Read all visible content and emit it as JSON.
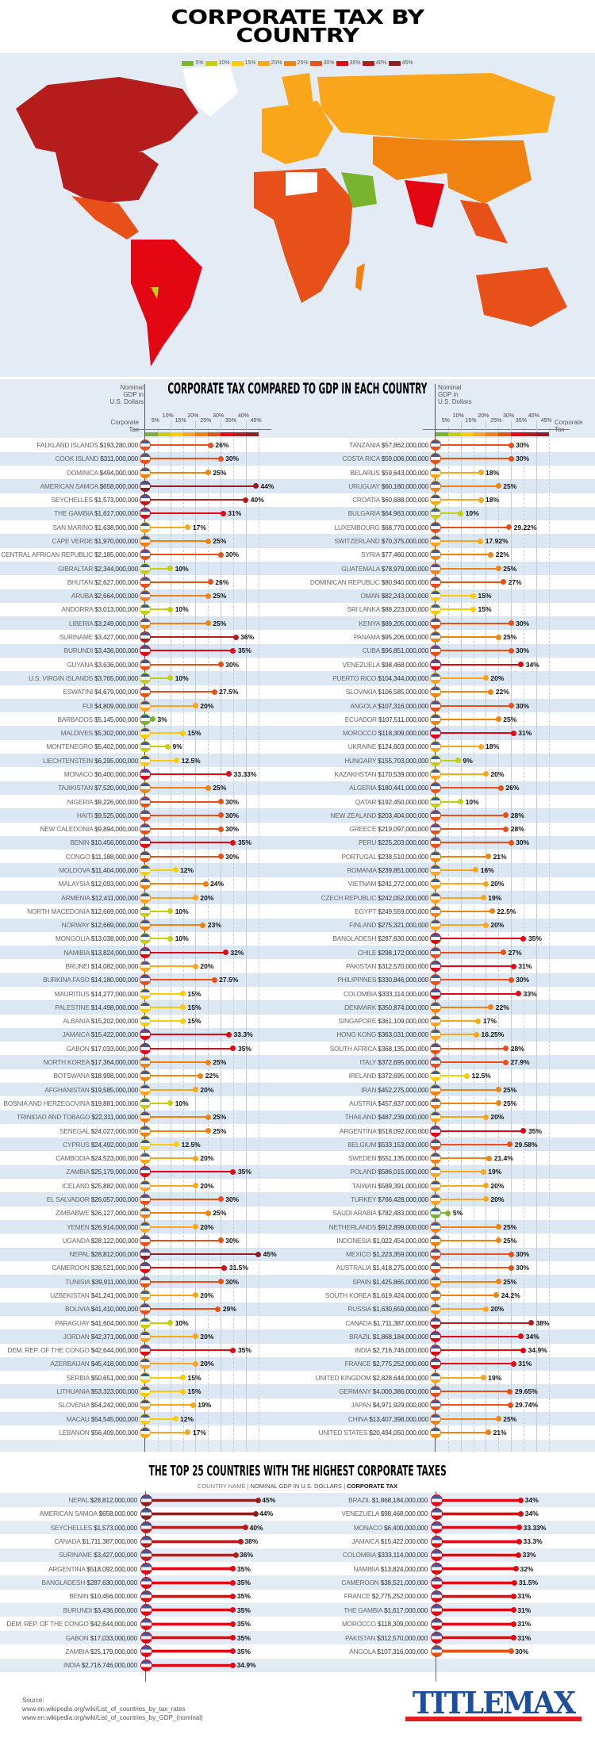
{
  "title": "CORPORATE TAX BY COUNTRY",
  "legend": [
    {
      "label": "5%",
      "color": "#7ab32e"
    },
    {
      "label": "10%",
      "color": "#c6cf0e"
    },
    {
      "label": "15%",
      "color": "#ffcb05"
    },
    {
      "label": "20%",
      "color": "#f9a61a"
    },
    {
      "label": "25%",
      "color": "#f0820f"
    },
    {
      "label": "30%",
      "color": "#e8501a"
    },
    {
      "label": "35%",
      "color": "#e30613"
    },
    {
      "label": "40%",
      "color": "#b51d1d"
    },
    {
      "label": "45%",
      "color": "#8e1f1f"
    }
  ],
  "comparison": {
    "title": "CORPORATE TAX COMPARED TO GDP IN EACH COUNTRY",
    "gdp_label": [
      "Nominal",
      "GDP in",
      "U.S. Dollars"
    ],
    "tax_label": [
      "Corporate",
      "Tax"
    ],
    "ticks": [
      "5%",
      "10%",
      "15%",
      "20%",
      "25%",
      "30%",
      "35%",
      "40%",
      "45%"
    ],
    "left": [
      {
        "country": "FALKLAND ISLANDS",
        "gdp": "$193,280,000",
        "tax": "26%"
      },
      {
        "country": "COOK ISLAND",
        "gdp": "$311,000,000",
        "tax": "30%"
      },
      {
        "country": "DOMINICA",
        "gdp": "$494,000,000",
        "tax": "25%"
      },
      {
        "country": "AMERICAN SAMOA",
        "gdp": "$658,000,000",
        "tax": "44%"
      },
      {
        "country": "SEYCHELLES",
        "gdp": "$1,573,000,000",
        "tax": "40%"
      },
      {
        "country": "THE GAMBIA",
        "gdp": "$1,617,000,000",
        "tax": "31%"
      },
      {
        "country": "SAN MARINO",
        "gdp": "$1,638,000,000",
        "tax": "17%"
      },
      {
        "country": "CAPE VERDE",
        "gdp": "$1,970,000,000",
        "tax": "25%"
      },
      {
        "country": "CENTRAL AFRICAN REPUBLIC",
        "gdp": "$2,185,000,000",
        "tax": "30%"
      },
      {
        "country": "GIBRALTAR",
        "gdp": "$2,344,000,000",
        "tax": "10%"
      },
      {
        "country": "BHUTAN",
        "gdp": "$2,627,000,000",
        "tax": "26%"
      },
      {
        "country": "ARUBA",
        "gdp": "$2,664,000,000",
        "tax": "25%"
      },
      {
        "country": "ANDORRA",
        "gdp": "$3,013,000,000",
        "tax": "10%"
      },
      {
        "country": "LIBERIA",
        "gdp": "$3,249,000,000",
        "tax": "25%"
      },
      {
        "country": "SURINAME",
        "gdp": "$3,427,000,000",
        "tax": "36%"
      },
      {
        "country": "BURUNDI",
        "gdp": "$3,436,000,000",
        "tax": "35%"
      },
      {
        "country": "GUYANA",
        "gdp": "$3,636,000,000",
        "tax": "30%"
      },
      {
        "country": "U.S. VIRGIN ISLANDS",
        "gdp": "$3,765,000,000",
        "tax": "10%"
      },
      {
        "country": "ESWATINI",
        "gdp": "$4,679,000,000",
        "tax": "27.5%"
      },
      {
        "country": "FIJI",
        "gdp": "$4,809,000,000",
        "tax": "20%"
      },
      {
        "country": "BARBADOS",
        "gdp": "$5,145,000,000",
        "tax": "3%"
      },
      {
        "country": "MALDIVES",
        "gdp": "$5,302,000,000",
        "tax": "15%"
      },
      {
        "country": "MONTENEGRO",
        "gdp": "$5,402,000,000",
        "tax": "9%"
      },
      {
        "country": "LIECHTENSTEIN",
        "gdp": "$6,295,000,000",
        "tax": "12.5%"
      },
      {
        "country": "MONACO",
        "gdp": "$6,400,000,000",
        "tax": "33.33%"
      },
      {
        "country": "TAJIKISTAN",
        "gdp": "$7,520,000,000",
        "tax": "25%"
      },
      {
        "country": "NIGERIA",
        "gdp": "$9,226,000,000",
        "tax": "30%"
      },
      {
        "country": "HAITI",
        "gdp": "$9,525,000,000",
        "tax": "30%"
      },
      {
        "country": "NEW CALEDONIA",
        "gdp": "$9,894,000,000",
        "tax": "30%"
      },
      {
        "country": "BENIN",
        "gdp": "$10,456,000,000",
        "tax": "35%"
      },
      {
        "country": "CONGO",
        "gdp": "$11,188,000,000",
        "tax": "30%"
      },
      {
        "country": "MOLDOVA",
        "gdp": "$11,404,000,000",
        "tax": "12%"
      },
      {
        "country": "MALAYSIA",
        "gdp": "$12,093,000,000",
        "tax": "24%"
      },
      {
        "country": "ARMENIA",
        "gdp": "$12,411,000,000",
        "tax": "20%"
      },
      {
        "country": "NORTH MACEDONIA",
        "gdp": "$12,669,000,000",
        "tax": "10%"
      },
      {
        "country": "NORWAY",
        "gdp": "$12,669,000,000",
        "tax": "23%"
      },
      {
        "country": "MONGOLIA",
        "gdp": "$13,038,000,000",
        "tax": "10%"
      },
      {
        "country": "NAMIBIA",
        "gdp": "$13,824,000,000",
        "tax": "32%"
      },
      {
        "country": "BRUNEI",
        "gdp": "$14,082,000,000",
        "tax": "20%"
      },
      {
        "country": "BURKINA FASO",
        "gdp": "$14,180,000,000",
        "tax": "27.5%"
      },
      {
        "country": "MAURITIUS",
        "gdp": "$14,277,000,000",
        "tax": "15%"
      },
      {
        "country": "PALESTINE",
        "gdp": "$14,498,000,000",
        "tax": "15%"
      },
      {
        "country": "ALBANIA",
        "gdp": "$15,202,000,000",
        "tax": "15%"
      },
      {
        "country": "JAMAICA",
        "gdp": "$15,422,000,000",
        "tax": "33.3%"
      },
      {
        "country": "GABON",
        "gdp": "$17,033,000,000",
        "tax": "35%"
      },
      {
        "country": "NORTH KOREA",
        "gdp": "$17,364,000,000",
        "tax": "25%"
      },
      {
        "country": "BOTSWANA",
        "gdp": "$18,998,000,000",
        "tax": "22%"
      },
      {
        "country": "AFGHANISTAN",
        "gdp": "$19,585,000,000",
        "tax": "20%"
      },
      {
        "country": "BOSNIA AND HERZEGOVINA",
        "gdp": "$19,881,000,000",
        "tax": "10%"
      },
      {
        "country": "TRINIDAD AND TOBAGO",
        "gdp": "$22,311,000,000",
        "tax": "25%"
      },
      {
        "country": "SENEGAL",
        "gdp": "$24,027,000,000",
        "tax": "25%"
      },
      {
        "country": "CYPRUS",
        "gdp": "$24,492,000,000",
        "tax": "12.5%"
      },
      {
        "country": "CAMBODIA",
        "gdp": "$24,523,000,000",
        "tax": "20%"
      },
      {
        "country": "ZAMBIA",
        "gdp": "$25,179,000,000",
        "tax": "35%"
      },
      {
        "country": "ICELAND",
        "gdp": "$25,882,000,000",
        "tax": "20%"
      },
      {
        "country": "EL SALVADOR",
        "gdp": "$26,057,000,000",
        "tax": "30%"
      },
      {
        "country": "ZIMBABWE",
        "gdp": "$26,127,000,000",
        "tax": "25%"
      },
      {
        "country": "YEMEN",
        "gdp": "$26,914,000,000",
        "tax": "20%"
      },
      {
        "country": "UGANDA",
        "gdp": "$28,122,000,000",
        "tax": "30%"
      },
      {
        "country": "NEPAL",
        "gdp": "$28,812,000,000",
        "tax": "45%"
      },
      {
        "country": "CAMEROON",
        "gdp": "$38,521,000,000",
        "tax": "31.5%"
      },
      {
        "country": "TUNISIA",
        "gdp": "$39,911,000,000",
        "tax": "30%"
      },
      {
        "country": "UZBEKISTAN",
        "gdp": "$41,241,000,000",
        "tax": "20%"
      },
      {
        "country": "BOLIVIA",
        "gdp": "$41,410,000,000",
        "tax": "29%"
      },
      {
        "country": "PARAGUAY",
        "gdp": "$41,604,000,000",
        "tax": "10%"
      },
      {
        "country": "JORDAN",
        "gdp": "$42,371,000,000",
        "tax": "20%"
      },
      {
        "country": "DEM. REP. OF THE CONGO",
        "gdp": "$42,644,000,000",
        "tax": "35%"
      },
      {
        "country": "AZERBAIJAN",
        "gdp": "$45,418,000,000",
        "tax": "20%"
      },
      {
        "country": "SERBIA",
        "gdp": "$50,651,000,000",
        "tax": "15%"
      },
      {
        "country": "LITHUANIA",
        "gdp": "$53,323,000,000",
        "tax": "15%"
      },
      {
        "country": "SLOVENIA",
        "gdp": "$54,242,000,000",
        "tax": "19%"
      },
      {
        "country": "MACAU",
        "gdp": "$54,545,000,000",
        "tax": "12%"
      },
      {
        "country": "LEBANON",
        "gdp": "$56,409,000,000",
        "tax": "17%"
      }
    ],
    "right": [
      {
        "country": "TANZANIA",
        "gdp": "$57,862,000,000",
        "tax": "30%"
      },
      {
        "country": "COSTA RICA",
        "gdp": "$59,006,000,000",
        "tax": "30%"
      },
      {
        "country": "BELARUS",
        "gdp": "$59,643,000,000",
        "tax": "18%"
      },
      {
        "country": "URUGUAY",
        "gdp": "$60,180,000,000",
        "tax": "25%"
      },
      {
        "country": "CROATIA",
        "gdp": "$60,688,000,000",
        "tax": "18%"
      },
      {
        "country": "BULGARIA",
        "gdp": "$64,963,000,000",
        "tax": "10%"
      },
      {
        "country": "LUXEMBOURG",
        "gdp": "$68,770,000,000",
        "tax": "29.22%"
      },
      {
        "country": "SWITZERLAND",
        "gdp": "$70,375,000,000",
        "tax": "17.92%"
      },
      {
        "country": "SYRIA",
        "gdp": "$77,460,000,000",
        "tax": "22%"
      },
      {
        "country": "GUATEMALA",
        "gdp": "$78,979,000,000",
        "tax": "25%"
      },
      {
        "country": "DOMINICAN REPUBLIC",
        "gdp": "$80,940,000,000",
        "tax": "27%"
      },
      {
        "country": "OMAN",
        "gdp": "$82,243,000,000",
        "tax": "15%"
      },
      {
        "country": "SRI LANKA",
        "gdp": "$88,223,000,000",
        "tax": "15%"
      },
      {
        "country": "KENYA",
        "gdp": "$89,205,000,000",
        "tax": "30%"
      },
      {
        "country": "PANAMA",
        "gdp": "$95,206,000,000",
        "tax": "25%"
      },
      {
        "country": "CUBA",
        "gdp": "$96,851,000,000",
        "tax": "30%"
      },
      {
        "country": "VENEZUELA",
        "gdp": "$98,468,000,000",
        "tax": "34%"
      },
      {
        "country": "PUERTO RICO",
        "gdp": "$104,344,000,000",
        "tax": "20%"
      },
      {
        "country": "SLOVAKIA",
        "gdp": "$106,585,000,000",
        "tax": "22%"
      },
      {
        "country": "ANGOLA",
        "gdp": "$107,316,000,000",
        "tax": "30%"
      },
      {
        "country": "ECUADOR",
        "gdp": "$107,511,000,000",
        "tax": "25%"
      },
      {
        "country": "MOROCCO",
        "gdp": "$118,309,000,000",
        "tax": "31%"
      },
      {
        "country": "UKRAINE",
        "gdp": "$124,603,000,000",
        "tax": "18%"
      },
      {
        "country": "HUNGARY",
        "gdp": "$155,703,000,000",
        "tax": "9%"
      },
      {
        "country": "KAZAKHSTAN",
        "gdp": "$170,539,000,000",
        "tax": "20%"
      },
      {
        "country": "ALGERIA",
        "gdp": "$180,441,000,000",
        "tax": "26%"
      },
      {
        "country": "QATAR",
        "gdp": "$192,450,000,000",
        "tax": "10%"
      },
      {
        "country": "NEW ZEALAND",
        "gdp": "$203,404,000,000",
        "tax": "28%"
      },
      {
        "country": "GREECE",
        "gdp": "$219,097,000,000",
        "tax": "28%"
      },
      {
        "country": "PERU",
        "gdp": "$225,203,000,000",
        "tax": "30%"
      },
      {
        "country": "PORTUGAL",
        "gdp": "$238,510,000,000",
        "tax": "21%"
      },
      {
        "country": "ROMANIA",
        "gdp": "$239,851,000,000",
        "tax": "16%"
      },
      {
        "country": "VIETNAM",
        "gdp": "$241,272,000,000",
        "tax": "20%"
      },
      {
        "country": "CZECH REPUBLIC",
        "gdp": "$242,052,000,000",
        "tax": "19%"
      },
      {
        "country": "EGYPT",
        "gdp": "$249,559,000,000",
        "tax": "22.5%"
      },
      {
        "country": "FINLAND",
        "gdp": "$275,321,000,000",
        "tax": "20%"
      },
      {
        "country": "BANGLADESH",
        "gdp": "$287,630,000,000",
        "tax": "35%"
      },
      {
        "country": "CHILE",
        "gdp": "$298,172,000,000",
        "tax": "27%"
      },
      {
        "country": "PAKISTAN",
        "gdp": "$312,570,000,000",
        "tax": "31%"
      },
      {
        "country": "PHILIPPINES",
        "gdp": "$330,846,000,000",
        "tax": "30%"
      },
      {
        "country": "COLOMBIA",
        "gdp": "$333,114,000,000",
        "tax": "33%"
      },
      {
        "country": "DENMARK",
        "gdp": "$350,874,000,000",
        "tax": "22%"
      },
      {
        "country": "SINGAPORE",
        "gdp": "$361,109,000,000",
        "tax": "17%"
      },
      {
        "country": "HONG KONG",
        "gdp": "$363,031,000,000",
        "tax": "16.25%"
      },
      {
        "country": "SOUTH AFRICA",
        "gdp": "$368,135,000,000",
        "tax": "28%"
      },
      {
        "country": "ITALY",
        "gdp": "$372,695,000,000",
        "tax": "27.9%"
      },
      {
        "country": "IRELAND",
        "gdp": "$372,695,000,000",
        "tax": "12.5%"
      },
      {
        "country": "IRAN",
        "gdp": "$452,275,000,000",
        "tax": "25%"
      },
      {
        "country": "AUSTRIA",
        "gdp": "$457,637,000,000",
        "tax": "25%"
      },
      {
        "country": "THAILAND",
        "gdp": "$487,239,000,000",
        "tax": "20%"
      },
      {
        "country": "ARGENTINA",
        "gdp": "$518,092,000,000",
        "tax": "35%"
      },
      {
        "country": "BELGIUM",
        "gdp": "$533,153,000,000",
        "tax": "29.58%"
      },
      {
        "country": "SWEDEN",
        "gdp": "$551,135,000,000",
        "tax": "21.4%"
      },
      {
        "country": "POLAND",
        "gdp": "$586,015,000,000",
        "tax": "19%"
      },
      {
        "country": "TAIWAN",
        "gdp": "$589,391,000,000",
        "tax": "20%"
      },
      {
        "country": "TURKEY",
        "gdp": "$766,428,000,000",
        "tax": "20%"
      },
      {
        "country": "SAUDI ARABIA",
        "gdp": "$782,483,000,000",
        "tax": "5%"
      },
      {
        "country": "NETHERLANDS",
        "gdp": "$912,899,000,000",
        "tax": "25%"
      },
      {
        "country": "INDONESIA",
        "gdp": "$1,022,454,000,000",
        "tax": "25%"
      },
      {
        "country": "MEXICO",
        "gdp": "$1,223,359,000,000",
        "tax": "30%"
      },
      {
        "country": "AUSTRALIA",
        "gdp": "$1,418,275,000,000",
        "tax": "30%"
      },
      {
        "country": "SPAIN",
        "gdp": "$1,425,865,000,000",
        "tax": "25%"
      },
      {
        "country": "SOUTH KOREA",
        "gdp": "$1,619,424,000,000",
        "tax": "24.2%"
      },
      {
        "country": "RUSSIA",
        "gdp": "$1,630,659,000,000",
        "tax": "20%"
      },
      {
        "country": "CANADA",
        "gdp": "$1,711,387,000,000",
        "tax": "38%"
      },
      {
        "country": "BRAZIL",
        "gdp": "$1,868,184,000,000",
        "tax": "34%"
      },
      {
        "country": "INDIA",
        "gdp": "$2,716,746,000,000",
        "tax": "34.9%"
      },
      {
        "country": "FRANCE",
        "gdp": "$2,775,252,000,000",
        "tax": "31%"
      },
      {
        "country": "UNITED KINGDOM",
        "gdp": "$2,828,644,000,000",
        "tax": "19%"
      },
      {
        "country": "GERMANY",
        "gdp": "$4,000,386,000,000",
        "tax": "29.65%"
      },
      {
        "country": "JAPAN",
        "gdp": "$4,971,929,000,000",
        "tax": "29.74%"
      },
      {
        "country": "CHINA",
        "gdp": "$13,407,398,000,000",
        "tax": "25%"
      },
      {
        "country": "UNITED STATES",
        "gdp": "$20,494,050,000,000",
        "tax": "21%"
      }
    ]
  },
  "top25": {
    "title": "THE TOP 25 COUNTRIES WITH THE HIGHEST CORPORATE TAXES",
    "header": {
      "country": "COUNTRY NAME |",
      "gdp": "NOMINAL GDP IN U.S. DOLLARS |",
      "tax": "CORPORATE TAX"
    },
    "left": [
      {
        "country": "NEPAL",
        "gdp": "$28,812,000,000",
        "tax": "45%"
      },
      {
        "country": "AMERICAN SAMOA",
        "gdp": "$658,000,000",
        "tax": "44%"
      },
      {
        "country": "SEYCHELLES",
        "gdp": "$1,573,000,000",
        "tax": "40%"
      },
      {
        "country": "CANADA",
        "gdp": "$1,711,387,000,000",
        "tax": "38%"
      },
      {
        "country": "SURINAME",
        "gdp": "$3,427,000,000",
        "tax": "36%"
      },
      {
        "country": "ARGENTINA",
        "gdp": "$518,092,000,000",
        "tax": "35%"
      },
      {
        "country": "BANGLADESH",
        "gdp": "$287,630,000,000",
        "tax": "35%"
      },
      {
        "country": "BENIN",
        "gdp": "$10,456,000,000",
        "tax": "35%"
      },
      {
        "country": "BURUNDI",
        "gdp": "$3,436,000,000",
        "tax": "35%"
      },
      {
        "country": "DEM. REP. OF THE CONGO",
        "gdp": "$42,644,000,000",
        "tax": "35%"
      },
      {
        "country": "GABON",
        "gdp": "$17,033,000,000",
        "tax": "35%"
      },
      {
        "country": "ZAMBIA",
        "gdp": "$25,179,000,000",
        "tax": "35%"
      },
      {
        "country": "INDIA",
        "gdp": "$2,716,746,000,000",
        "tax": "34.9%"
      }
    ],
    "right": [
      {
        "country": "BRAZIL",
        "gdp": "$1,868,184,000,000",
        "tax": "34%"
      },
      {
        "country": "VENEZUELA",
        "gdp": "$98,468,000,000",
        "tax": "34%"
      },
      {
        "country": "MONACO",
        "gdp": "$6,400,000,000",
        "tax": "33.33%"
      },
      {
        "country": "JAMAICA",
        "gdp": "$15,422,000,000",
        "tax": "33.3%"
      },
      {
        "country": "COLOMBIA",
        "gdp": "$333,114,000,000",
        "tax": "33%"
      },
      {
        "country": "NAMIBIA",
        "gdp": "$13,824,000,000",
        "tax": "32%"
      },
      {
        "country": "CAMEROON",
        "gdp": "$38,521,000,000",
        "tax": "31.5%"
      },
      {
        "country": "FRANCE",
        "gdp": "$2,775,252,000,000",
        "tax": "31%"
      },
      {
        "country": "THE GAMBIA",
        "gdp": "$1,617,000,000",
        "tax": "31%"
      },
      {
        "country": "MOROCCO",
        "gdp": "$118,309,000,000",
        "tax": "31%"
      },
      {
        "country": "PAKISTAN",
        "gdp": "$312,570,000,000",
        "tax": "31%"
      },
      {
        "country": "ANGOLA",
        "gdp": "$107,316,000,000",
        "tax": "30%"
      }
    ]
  },
  "source": {
    "label": "Source:",
    "lines": [
      "www.en.wikipedia.org/wiki/List_of_countries_by_tax_rates",
      "www.en.wikipedia.org/wiki/List_of_countries_by_GDP_(nominal)"
    ]
  },
  "logo": "TITLEMAX",
  "chart_data": {
    "type": "bar",
    "title": "CORPORATE TAX COMPARED TO GDP IN EACH COUNTRY",
    "xlabel": "Corporate Tax",
    "ylabel": "Nominal GDP in U.S. Dollars",
    "xlim": [
      0,
      45
    ],
    "note": "values in comparison.left/right and top25.left/right"
  }
}
